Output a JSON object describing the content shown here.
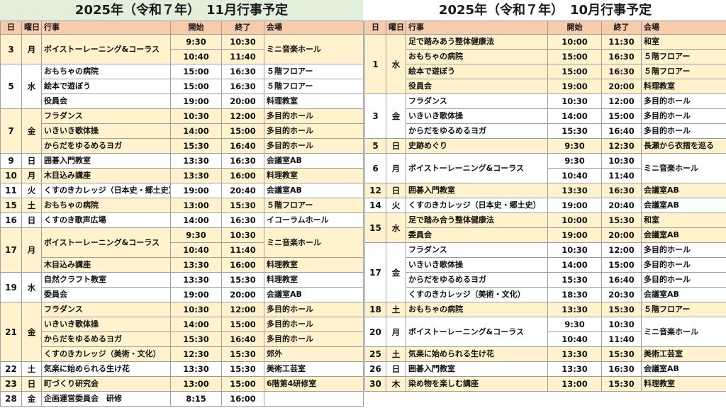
{
  "november": {
    "title": "2025年（令和７年）　11月行事予定",
    "headers": [
      "日",
      "曜日",
      "行事",
      "開始",
      "終了",
      "会場"
    ],
    "rows": [
      [
        "3",
        "月",
        "ボイストーレーニング&コーラス",
        "9:30",
        "10:30",
        "ミニ音楽ホール"
      ],
      [
        "",
        "",
        "",
        "10:40",
        "11:40",
        ""
      ],
      [
        "5",
        "水",
        "おもちゃの病院",
        "15:00",
        "16:30",
        "５階フロアー"
      ],
      [
        "",
        "",
        "絵本で遊ぼう",
        "15:00",
        "16:30",
        "５階フロアー"
      ],
      [
        "",
        "",
        "役員会",
        "19:00",
        "20:00",
        "料理教室"
      ],
      [
        "7",
        "金",
        "フラダンス",
        "10:30",
        "12:00",
        "多目的ホール"
      ],
      [
        "",
        "",
        "いきいき歌体操",
        "14:00",
        "15:00",
        "多目的ホール"
      ],
      [
        "",
        "",
        "からだをゆるめるヨガ",
        "15:30",
        "16:40",
        "多目的ホール"
      ],
      [
        "9",
        "日",
        "囲碁入門教室",
        "13:30",
        "16:30",
        "会議室AB"
      ],
      [
        "10",
        "月",
        "木目込み講座",
        "13:30",
        "16:00",
        "料理教室"
      ],
      [
        "11",
        "火",
        "くすのきカレッジ（日本史・郷土史）",
        "19:00",
        "20:40",
        "会議室AB"
      ],
      [
        "15",
        "土",
        "おもちゃの病院",
        "13:00",
        "15:30",
        "５階フロアー"
      ],
      [
        "16",
        "日",
        "くすのき歌声広場",
        "14:00",
        "16:30",
        "イコーラムホール"
      ],
      [
        "17",
        "月",
        "ボイストーレーニング&コーラス",
        "9:30",
        "10:30",
        "ミニ音楽ホール"
      ],
      [
        "",
        "",
        "",
        "10:40",
        "11:40",
        ""
      ],
      [
        "",
        "",
        "木目込み講座",
        "13:30",
        "16:00",
        "料理教室"
      ],
      [
        "19",
        "水",
        "自然クラフト教室",
        "13:30",
        "15:30",
        "料理教室"
      ],
      [
        "",
        "",
        "委員会",
        "19:00",
        "20:00",
        "会議室AB"
      ],
      [
        "21",
        "金",
        "フラダンス",
        "10:30",
        "12:00",
        "多目的ホール"
      ],
      [
        "",
        "",
        "いきいき歌体操",
        "14:00",
        "15:00",
        "多目的ホール"
      ],
      [
        "",
        "",
        "からだをゆるめるヨガ",
        "15:30",
        "16:40",
        "多目的ホール"
      ],
      [
        "",
        "",
        "くすのきカレッジ（美術・文化）",
        "12:30",
        "15:30",
        "郊外"
      ],
      [
        "22",
        "土",
        "気楽に始められる生け花",
        "13:30",
        "15:30",
        "美術工芸室"
      ],
      [
        "23",
        "日",
        "町づくり研究会",
        "13:00",
        "15:00",
        "6階第4研修室"
      ],
      [
        "28",
        "金",
        "企画運営委員会　研修",
        "8:15",
        "16:00",
        ""
      ]
    ]
  },
  "october": {
    "title": "2025年（令和７年）　10月行事予定",
    "headers": [
      "日",
      "曜日",
      "行事",
      "開始",
      "終了",
      "会場"
    ],
    "rows": [
      [
        "1",
        "水",
        "足で踏みあう整体健康法",
        "10:00",
        "11:30",
        "和室"
      ],
      [
        "",
        "",
        "おもちゃの病院",
        "15:00",
        "16:30",
        "５階フロアー"
      ],
      [
        "",
        "",
        "絵本で遊ぼう",
        "15:00",
        "16:30",
        "５階フロアー"
      ],
      [
        "",
        "",
        "役員会",
        "19:00",
        "20:00",
        "料理教室"
      ],
      [
        "3",
        "金",
        "フラダンス",
        "10:30",
        "12:00",
        "多目的ホール"
      ],
      [
        "",
        "",
        "いきいき歌体操",
        "14:00",
        "15:00",
        "多目的ホール"
      ],
      [
        "",
        "",
        "からだをゆるめるヨガ",
        "15:30",
        "16:40",
        "多目的ホール"
      ],
      [
        "5",
        "日",
        "史跡めぐり",
        "9:30",
        "12:30",
        "長瀬から衣摺を巡る"
      ],
      [
        "6",
        "月",
        "ボイストーレーニング&コーラス",
        "9:30",
        "10:30",
        "ミニ音楽ホール"
      ],
      [
        "",
        "",
        "",
        "10:40",
        "11:40",
        ""
      ],
      [
        "12",
        "日",
        "囲碁入門教室",
        "13:30",
        "16:30",
        "会議室AB"
      ],
      [
        "14",
        "火",
        "くすのきカレッジ（日本史・郷土史）",
        "19:00",
        "20:40",
        "会議室AB"
      ],
      [
        "15",
        "水",
        "足で踏み合う整体健康法",
        "10:00",
        "15:30",
        "和室"
      ],
      [
        "",
        "",
        "委員会",
        "19:00",
        "20:00",
        "会議室AB"
      ],
      [
        "17",
        "金",
        "フラダンス",
        "10:30",
        "12:00",
        "多目的ホール"
      ],
      [
        "",
        "",
        "いきいき歌体操",
        "14:00",
        "15:00",
        "多目的ホール"
      ],
      [
        "",
        "",
        "からだをゆるめるヨガ",
        "15:30",
        "16:40",
        "多目的ホール"
      ],
      [
        "",
        "",
        "くすのきカレッジ（美術・文化）",
        "18:30",
        "20:30",
        "会議室AB"
      ],
      [
        "18",
        "土",
        "おもちゃの病院",
        "13:30",
        "15:30",
        "５階フロアー"
      ],
      [
        "20",
        "月",
        "ボイストーレーニング&コーラス",
        "9:30",
        "10:30",
        "ミニ音楽ホール"
      ],
      [
        "",
        "",
        "",
        "10:40",
        "11:40",
        ""
      ],
      [
        "25",
        "土",
        "気楽に始められる生け花",
        "13:30",
        "15:30",
        "美術工芸室"
      ],
      [
        "26",
        "日",
        "囲碁入門教室",
        "13:30",
        "16:30",
        "会議室AB"
      ],
      [
        "30",
        "木",
        "染め物を楽しむ講座",
        "13:00",
        "15:30",
        "料理教室"
      ]
    ]
  }
}
